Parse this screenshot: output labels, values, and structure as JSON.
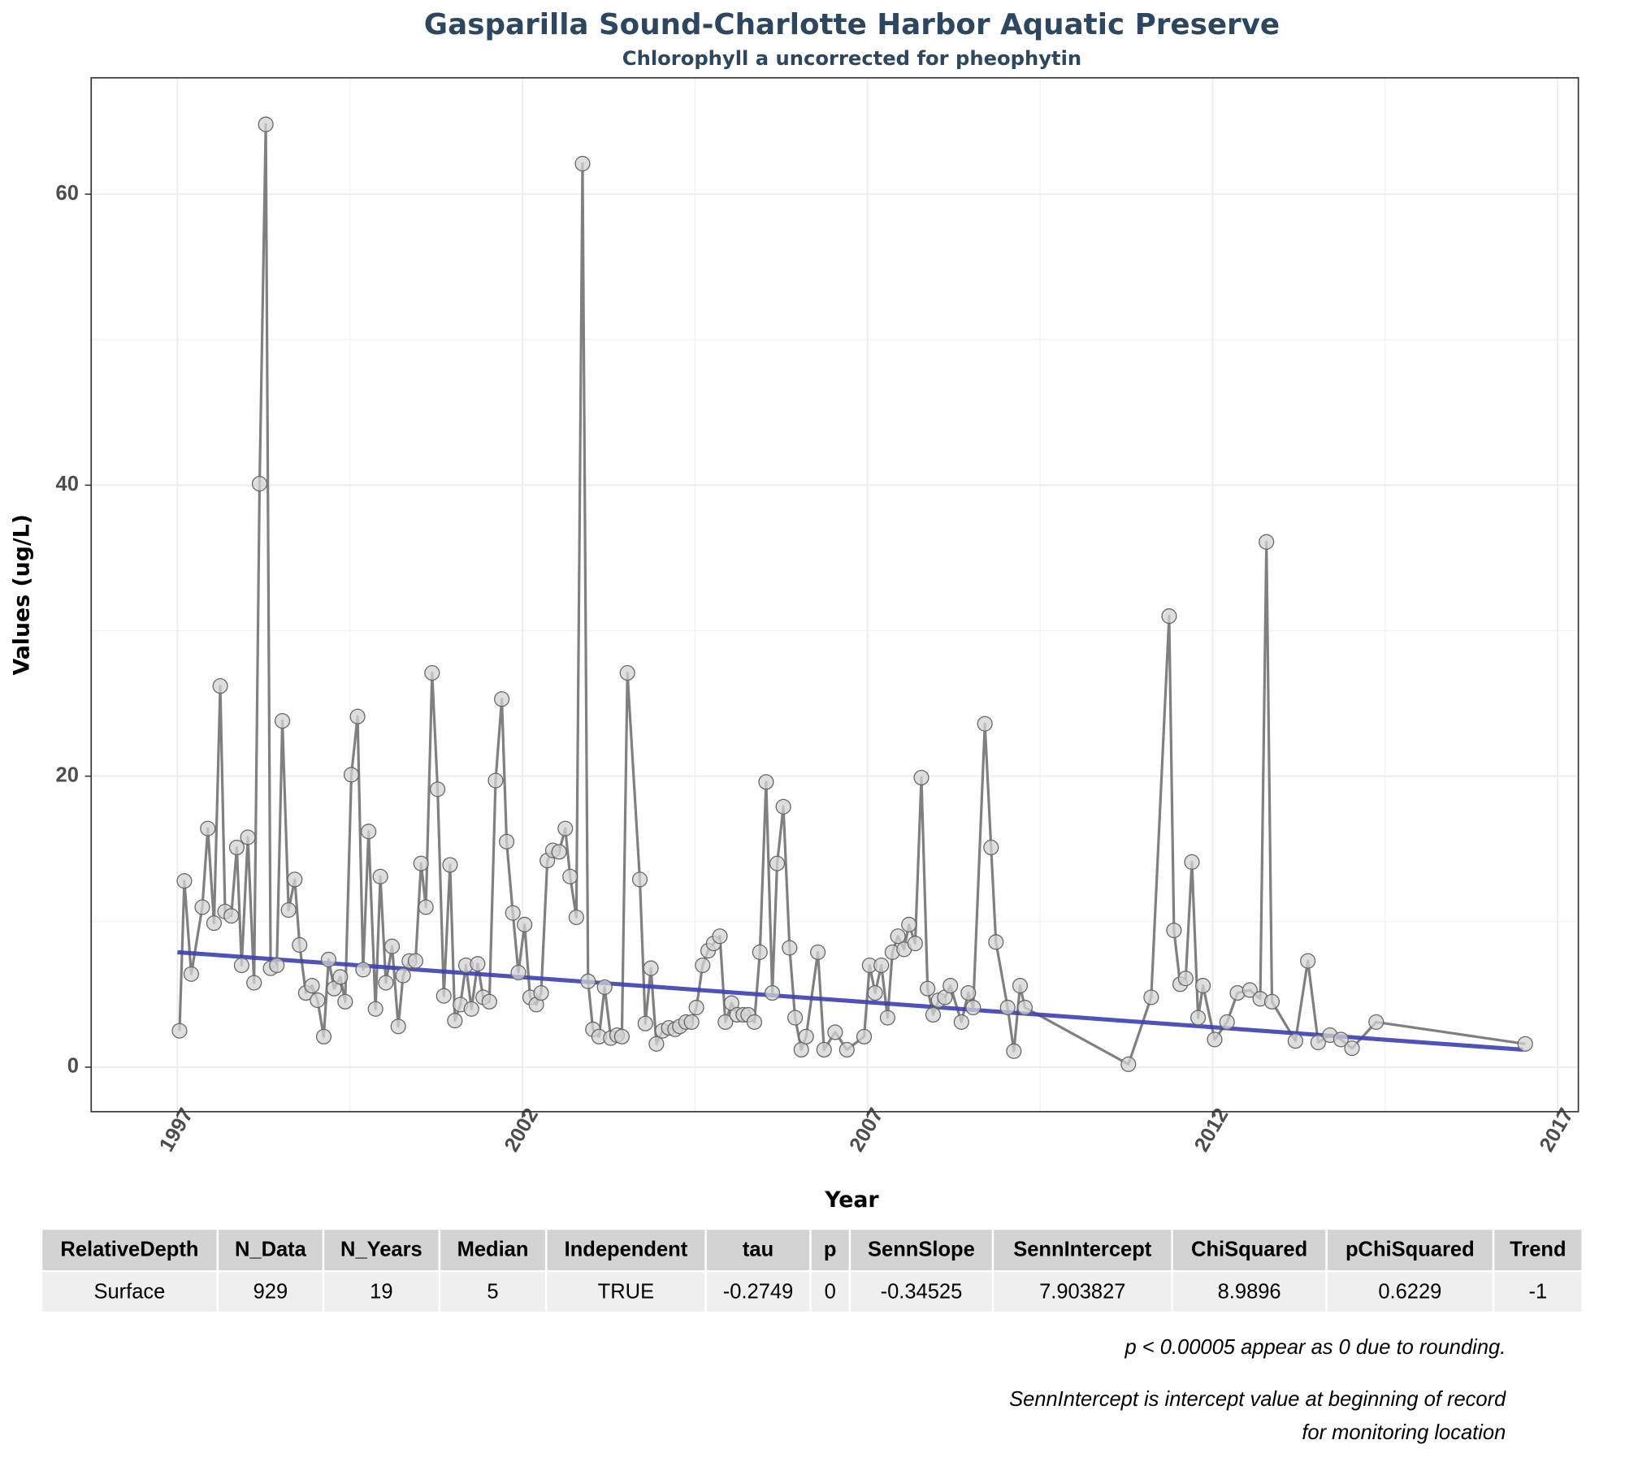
{
  "chart_data": {
    "type": "line",
    "title": "Gasparilla Sound-Charlotte Harbor Aquatic Preserve",
    "subtitle": "Chlorophyll a uncorrected for pheophytin",
    "x_label": "Year",
    "y_label": "Values (ug/L)",
    "x": [
      1997.03,
      1997.1,
      1997.2,
      1997.36,
      1997.44,
      1997.53,
      1997.62,
      1997.69,
      1997.78,
      1997.86,
      1997.93,
      1998.02,
      1998.11,
      1998.19,
      1998.28,
      1998.35,
      1998.44,
      1998.52,
      1998.61,
      1998.7,
      1998.77,
      1998.86,
      1998.95,
      1999.03,
      1999.12,
      1999.19,
      1999.27,
      1999.36,
      1999.43,
      1999.52,
      1999.61,
      1999.69,
      1999.77,
      1999.87,
      1999.94,
      2000.02,
      2000.11,
      2000.2,
      2000.27,
      2000.36,
      2000.45,
      2000.53,
      2000.6,
      2000.69,
      2000.77,
      2000.86,
      2000.95,
      2001.02,
      2001.1,
      2001.18,
      2001.26,
      2001.35,
      2001.43,
      2001.52,
      2001.61,
      2001.7,
      2001.77,
      2001.86,
      2001.94,
      2002.03,
      2002.11,
      2002.2,
      2002.27,
      2002.36,
      2002.44,
      2002.53,
      2002.62,
      2002.69,
      2002.78,
      2002.87,
      2002.95,
      2003.02,
      2003.11,
      2003.19,
      2003.28,
      2003.37,
      2003.44,
      2003.52,
      2003.7,
      2003.78,
      2003.86,
      2003.94,
      2004.03,
      2004.12,
      2004.21,
      2004.28,
      2004.37,
      2004.45,
      2004.52,
      2004.61,
      2004.69,
      2004.77,
      2004.86,
      2004.94,
      2005.03,
      2005.11,
      2005.2,
      2005.27,
      2005.36,
      2005.44,
      2005.53,
      2005.62,
      2005.69,
      2005.78,
      2005.87,
      2005.95,
      2006.04,
      2006.11,
      2006.28,
      2006.37,
      2006.53,
      2006.7,
      2006.95,
      2007.03,
      2007.11,
      2007.2,
      2007.29,
      2007.36,
      2007.44,
      2007.53,
      2007.6,
      2007.69,
      2007.78,
      2007.87,
      2007.95,
      2008.03,
      2008.12,
      2008.2,
      2008.36,
      2008.46,
      2008.53,
      2008.7,
      2008.79,
      2008.86,
      2009.03,
      2009.12,
      2009.21,
      2009.28,
      2010.78,
      2011.11,
      2011.37,
      2011.44,
      2011.53,
      2011.61,
      2011.7,
      2011.79,
      2011.86,
      2012.03,
      2012.21,
      2012.36,
      2012.54,
      2012.69,
      2012.78,
      2012.86,
      2013.2,
      2013.38,
      2013.53,
      2013.7,
      2013.86,
      2014.02,
      2014.37,
      2016.53
    ],
    "values": [
      2.5,
      12.8,
      6.4,
      11.0,
      16.4,
      9.9,
      26.2,
      10.7,
      10.4,
      15.1,
      7.0,
      15.8,
      5.8,
      40.1,
      64.8,
      6.8,
      7.0,
      23.8,
      10.8,
      12.9,
      8.4,
      5.1,
      5.6,
      4.6,
      2.1,
      7.4,
      5.4,
      6.2,
      4.5,
      20.1,
      24.1,
      6.7,
      16.2,
      4.0,
      13.1,
      5.8,
      8.3,
      2.8,
      6.3,
      7.3,
      7.3,
      14.0,
      11.0,
      27.1,
      19.1,
      4.9,
      13.9,
      3.2,
      4.3,
      7.0,
      4.0,
      7.1,
      4.8,
      4.5,
      19.7,
      25.3,
      15.5,
      10.6,
      6.5,
      9.8,
      4.8,
      4.3,
      5.1,
      14.2,
      14.9,
      14.8,
      16.4,
      13.1,
      10.3,
      62.1,
      5.9,
      2.6,
      2.1,
      5.5,
      2.0,
      2.2,
      2.1,
      27.1,
      12.9,
      3.0,
      6.8,
      1.6,
      2.5,
      2.7,
      2.6,
      2.8,
      3.1,
      3.1,
      4.1,
      7.0,
      8.0,
      8.5,
      9.0,
      3.1,
      4.4,
      3.6,
      3.6,
      3.6,
      3.1,
      7.9,
      19.6,
      5.1,
      14.0,
      17.9,
      8.2,
      3.4,
      1.2,
      2.1,
      7.9,
      1.2,
      2.4,
      1.2,
      2.1,
      7.0,
      5.1,
      7.0,
      3.4,
      7.9,
      9.0,
      8.1,
      9.8,
      8.5,
      19.9,
      5.4,
      3.6,
      4.6,
      4.8,
      5.6,
      3.1,
      5.1,
      4.1,
      23.6,
      15.1,
      8.6,
      4.1,
      1.1,
      5.6,
      4.1,
      0.2,
      4.8,
      31.0,
      9.4,
      5.7,
      6.1,
      14.1,
      3.4,
      5.6,
      1.9,
      3.1,
      5.1,
      5.3,
      4.7,
      36.1,
      4.5,
      1.8,
      7.3,
      1.7,
      2.2,
      1.9,
      1.3,
      3.1,
      1.6
    ],
    "color": "#808080",
    "marker_color": "#d3d3d3",
    "trend": {
      "x": [
        1997.0,
        2016.5
      ],
      "values": [
        7.9,
        1.2
      ],
      "color": "#3b3fb3"
    },
    "xlim": [
      1995.75,
      2017.3
    ],
    "xticks": [
      1997,
      2002,
      2007,
      2012,
      2017
    ],
    "ylim": [
      -3.06,
      68
    ],
    "yticks": [
      0,
      20,
      40,
      60
    ],
    "grid": true
  },
  "table": {
    "columns": [
      "RelativeDepth",
      "N_Data",
      "N_Years",
      "Median",
      "Independent",
      "tau",
      "p",
      "SennSlope",
      "SennIntercept",
      "ChiSquared",
      "pChiSquared",
      "Trend"
    ],
    "rows": [
      [
        "Surface",
        929,
        19,
        5,
        "TRUE",
        -0.2749,
        0,
        -0.34525,
        7.903827,
        8.9896,
        0.6229,
        -1
      ]
    ]
  },
  "notes": [
    "p < 0.00005 appear as 0 due to rounding.",
    "SennIntercept is intercept value at beginning of record for monitoring location"
  ]
}
